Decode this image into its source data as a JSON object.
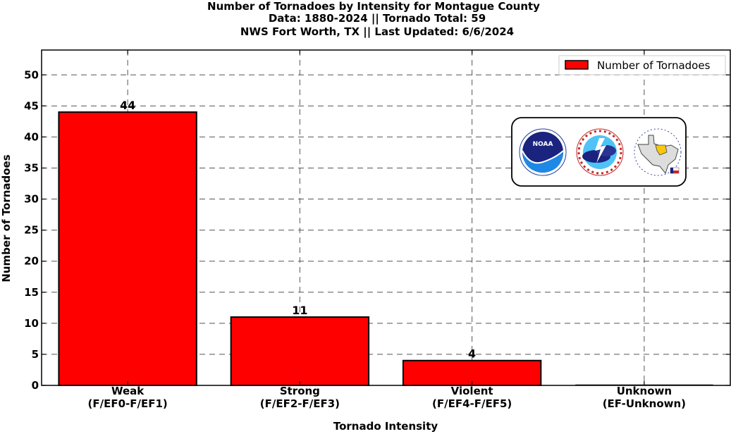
{
  "chart_data": {
    "type": "bar",
    "title_lines": [
      "Number of Tornadoes by Intensity for Montague County",
      "Data: 1880-2024 || Tornado Total: 59",
      "NWS Fort Worth, TX || Last Updated: 6/6/2024"
    ],
    "xlabel": "Tornado Intensity",
    "ylabel": "Number of Tornadoes",
    "categories": [
      {
        "line1": "Weak",
        "line2": "(F/EF0-F/EF1)"
      },
      {
        "line1": "Strong",
        "line2": "(F/EF2-F/EF3)"
      },
      {
        "line1": "Violent",
        "line2": "(F/EF4-F/EF5)"
      },
      {
        "line1": "Unknown",
        "line2": "(EF-Unknown)"
      }
    ],
    "series": [
      {
        "name": "Number of Tornadoes",
        "values": [
          44,
          11,
          4,
          0
        ],
        "color": "#ff0000"
      }
    ],
    "data_labels": [
      "44",
      "11",
      "4",
      ""
    ],
    "yticks": [
      "0",
      "5",
      "10",
      "15",
      "20",
      "25",
      "30",
      "35",
      "40",
      "45",
      "50"
    ],
    "ylim": [
      0,
      54
    ],
    "grid": true,
    "legend_position": "top-right",
    "logos": [
      "noaa-logo",
      "national-weather-service-logo",
      "nws-fort-worth-logo"
    ]
  }
}
